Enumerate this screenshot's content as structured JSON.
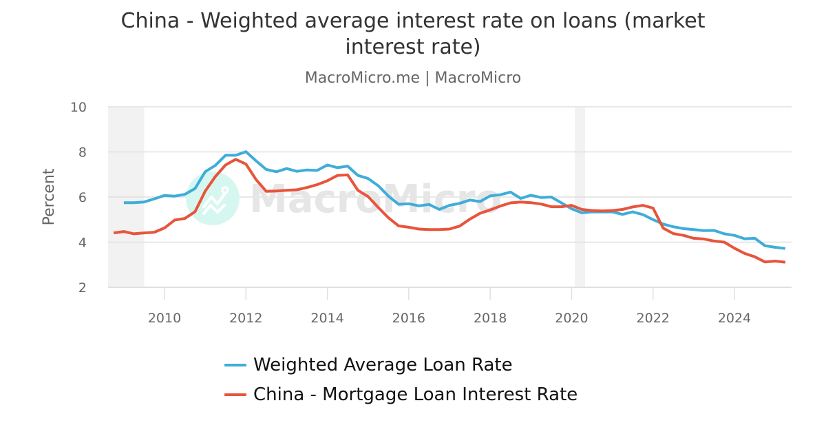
{
  "title": "China - Weighted average interest rate on loans (market interest rate)",
  "subtitle": "MacroMicro.me | MacroMicro",
  "watermark": "MacroMicro",
  "colors": {
    "weighted_average": "#3fadd9",
    "mortgage": "#e8543c",
    "recession_band": "#f2f2f2",
    "grid": "#e0e0e0",
    "watermark_circle": "#d6f7ef"
  },
  "axes": {
    "ylabel": "Percent",
    "yticks": [
      "10",
      "8",
      "6",
      "4",
      "2"
    ],
    "xticks": [
      "2010",
      "2012",
      "2014",
      "2016",
      "2018",
      "2020",
      "2022",
      "2024"
    ]
  },
  "legend": [
    {
      "label": "Weighted Average Loan Rate",
      "color": "#3fadd9"
    },
    {
      "label": "China - Mortgage Loan Interest Rate",
      "color": "#e8543c"
    }
  ],
  "chart_data": {
    "type": "line",
    "title": "China - Weighted average interest rate on loans (market interest rate)",
    "subtitle": "MacroMicro.me | MacroMicro",
    "xlabel": "",
    "ylabel": "Percent",
    "ylim": [
      2,
      10
    ],
    "xlim": [
      2008.6,
      2025.4
    ],
    "xticks": [
      2010,
      2012,
      2014,
      2016,
      2018,
      2020,
      2022,
      2024
    ],
    "yticks": [
      2,
      4,
      6,
      8,
      10
    ],
    "grid": true,
    "legend_position": "bottom",
    "shaded_regions": [
      [
        2008.6,
        2009.5
      ],
      [
        2020.08,
        2020.33
      ]
    ],
    "series": [
      {
        "name": "Weighted Average Loan Rate",
        "color": "#3fadd9",
        "x": [
          2009.0,
          2009.25,
          2009.5,
          2009.75,
          2010.0,
          2010.25,
          2010.5,
          2010.75,
          2011.0,
          2011.25,
          2011.5,
          2011.75,
          2012.0,
          2012.25,
          2012.5,
          2012.75,
          2013.0,
          2013.25,
          2013.5,
          2013.75,
          2014.0,
          2014.25,
          2014.5,
          2014.75,
          2015.0,
          2015.25,
          2015.5,
          2015.75,
          2016.0,
          2016.25,
          2016.5,
          2016.75,
          2017.0,
          2017.25,
          2017.5,
          2017.75,
          2018.0,
          2018.25,
          2018.5,
          2018.75,
          2019.0,
          2019.25,
          2019.5,
          2019.75,
          2020.0,
          2020.25,
          2020.5,
          2020.75,
          2021.0,
          2021.25,
          2021.5,
          2021.75,
          2022.0,
          2022.25,
          2022.5,
          2022.75,
          2023.0,
          2023.25,
          2023.5,
          2023.75,
          2024.0,
          2024.25,
          2024.5,
          2024.75,
          2025.0,
          2025.25
        ],
        "values": [
          5.75,
          5.75,
          5.78,
          5.92,
          6.07,
          6.04,
          6.12,
          6.38,
          7.12,
          7.4,
          7.85,
          7.85,
          8.01,
          7.6,
          7.22,
          7.12,
          7.26,
          7.14,
          7.2,
          7.18,
          7.42,
          7.3,
          7.37,
          6.96,
          6.82,
          6.5,
          6.04,
          5.68,
          5.7,
          5.61,
          5.67,
          5.45,
          5.63,
          5.72,
          5.87,
          5.8,
          6.05,
          6.1,
          6.22,
          5.94,
          6.08,
          5.98,
          6.0,
          5.74,
          5.48,
          5.3,
          5.34,
          5.34,
          5.34,
          5.23,
          5.34,
          5.22,
          5.0,
          4.8,
          4.68,
          4.6,
          4.56,
          4.51,
          4.52,
          4.37,
          4.3,
          4.15,
          4.17,
          3.84,
          3.77,
          3.72
        ]
      },
      {
        "name": "China - Mortgage Loan Interest Rate",
        "color": "#e8543c",
        "x": [
          2008.75,
          2009.0,
          2009.25,
          2009.5,
          2009.75,
          2010.0,
          2010.25,
          2010.5,
          2010.75,
          2011.0,
          2011.25,
          2011.5,
          2011.75,
          2012.0,
          2012.25,
          2012.5,
          2012.75,
          2013.0,
          2013.25,
          2013.5,
          2013.75,
          2014.0,
          2014.25,
          2014.5,
          2014.75,
          2015.0,
          2015.25,
          2015.5,
          2015.75,
          2016.0,
          2016.25,
          2016.5,
          2016.75,
          2017.0,
          2017.25,
          2017.5,
          2017.75,
          2018.0,
          2018.25,
          2018.5,
          2018.75,
          2019.0,
          2019.25,
          2019.5,
          2019.75,
          2020.0,
          2020.25,
          2020.5,
          2020.75,
          2021.0,
          2021.25,
          2021.5,
          2021.75,
          2022.0,
          2022.25,
          2022.5,
          2022.75,
          2023.0,
          2023.25,
          2023.5,
          2023.75,
          2024.0,
          2024.25,
          2024.5,
          2024.75,
          2025.0,
          2025.25
        ],
        "values": [
          4.41,
          4.47,
          4.37,
          4.41,
          4.44,
          4.63,
          4.98,
          5.05,
          5.35,
          6.26,
          6.91,
          7.42,
          7.67,
          7.46,
          6.77,
          6.25,
          6.27,
          6.3,
          6.32,
          6.42,
          6.55,
          6.72,
          6.96,
          6.98,
          6.3,
          6.02,
          5.54,
          5.08,
          4.72,
          4.66,
          4.58,
          4.56,
          4.56,
          4.58,
          4.71,
          5.02,
          5.28,
          5.43,
          5.6,
          5.74,
          5.78,
          5.75,
          5.69,
          5.57,
          5.57,
          5.63,
          5.45,
          5.4,
          5.38,
          5.4,
          5.45,
          5.56,
          5.63,
          5.51,
          4.62,
          4.38,
          4.3,
          4.17,
          4.14,
          4.05,
          4.0,
          3.73,
          3.5,
          3.35,
          3.12,
          3.16,
          3.11
        ]
      }
    ]
  }
}
